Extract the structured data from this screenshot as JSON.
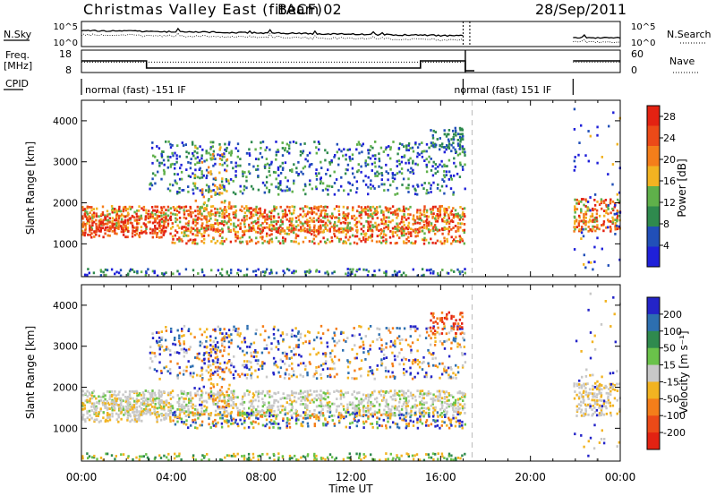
{
  "header": {
    "title": "Christmas Valley East (fitACF)",
    "beam": "Beam 02",
    "date": "28/Sep/2011"
  },
  "side_labels": {
    "nsky": "N.Sky",
    "nsearch": "N.Search",
    "freq": "Freq.",
    "freq_unit": "[MHz]",
    "nave": "Nave",
    "cpid": "CPID"
  },
  "cpid_segments": [
    {
      "label": "normal (fast) -151 IF",
      "start": 0,
      "end": 17
    },
    {
      "label": "normal (fast) 151 IF",
      "start": 17,
      "end": 21.9
    }
  ],
  "noise_panel": {
    "left_ticks": [
      "10^5",
      "10^0"
    ],
    "right_ticks": [
      "10^5",
      "10^0"
    ],
    "segments": [
      [
        0,
        17
      ],
      [
        21.9,
        24
      ]
    ]
  },
  "freq_panel": {
    "left_ticks": [
      18,
      8
    ],
    "right_ticks": [
      60,
      0
    ],
    "freq_steps": [
      {
        "start": 0,
        "end": 2.9,
        "value": 14.5
      },
      {
        "start": 2.9,
        "end": 15.1,
        "value": 10.5
      },
      {
        "start": 15.1,
        "end": 17.1,
        "value": 14.5
      },
      {
        "start": 17.1,
        "end": 17.5,
        "value": 9
      },
      {
        "start": 21.9,
        "end": 24,
        "value": 14.5
      }
    ],
    "nave_level": 28
  },
  "chart_data": [
    {
      "type": "heatmap",
      "name": "power",
      "xlabel": "Time UT",
      "ylabel": "Slant Range [km]",
      "xlim": [
        0,
        24
      ],
      "ylim": [
        200,
        4500
      ],
      "x_ticks": [
        "00:00",
        "04:00",
        "08:00",
        "12:00",
        "16:00",
        "20:00",
        "00:00"
      ],
      "y_ticks": [
        1000,
        2000,
        3000,
        4000
      ],
      "colorbar": {
        "label": "Power [dB]",
        "ticks": [
          4,
          8,
          12,
          16,
          20,
          24,
          28
        ],
        "range": [
          0,
          30
        ],
        "colors": [
          "#1f20d9",
          "#214fb8",
          "#2f8a4e",
          "#5fb04a",
          "#f2b321",
          "#f47e1a",
          "#ec4a18",
          "#e32212"
        ]
      },
      "data_gap": [
        17.1,
        21.9
      ]
    },
    {
      "type": "heatmap",
      "name": "velocity",
      "xlabel": "Time UT",
      "ylabel": "Slant Range [km]",
      "xlim": [
        0,
        24
      ],
      "ylim": [
        200,
        4500
      ],
      "x_ticks": [
        "00:00",
        "04:00",
        "08:00",
        "12:00",
        "16:00",
        "20:00",
        "00:00"
      ],
      "y_ticks": [
        1000,
        2000,
        3000,
        4000
      ],
      "colorbar": {
        "label": "Velocity [m s⁻¹]",
        "ticks": [
          200,
          100,
          50,
          15,
          -15,
          -50,
          -100,
          -200
        ],
        "colors": [
          "#2424c8",
          "#2d6fb0",
          "#2f8a4e",
          "#6ac24a",
          "#c8c8c8",
          "#f2b321",
          "#f47e1a",
          "#ec4a18",
          "#e32212"
        ]
      },
      "data_gap": [
        17.1,
        21.9
      ]
    }
  ]
}
